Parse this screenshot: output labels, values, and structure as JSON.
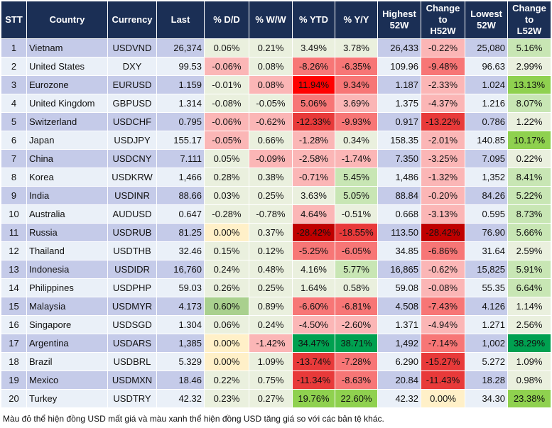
{
  "headers": [
    "STT",
    "Country",
    "Currency",
    "Last",
    "% D/D",
    "% W/W",
    "% YTD",
    "% Y/Y",
    "Highest\n52W",
    "Change\nto\nH52W",
    "Lowest\n52W",
    "Change\nto\nL52W"
  ],
  "color_legend": {
    "def": "#eaf0de",
    "r1": "#fbb6b6",
    "r2": "#f77676",
    "r3": "#e83a3a",
    "r4": "#ff0000",
    "r5": "#c00000",
    "g1": "#c8e6b4",
    "g2": "#8fd14f",
    "g3": "#a9d08e",
    "g4": "#00a050",
    "y": "#fff0c8",
    "header": "#1b2f55",
    "row_odd": "#c5cbe9",
    "row_even": "#eaf0f8"
  },
  "rows": [
    {
      "stt": "1",
      "country": "Vietnam",
      "currency": "USDVND",
      "last": "26,374",
      "dd": "0.06%",
      "ww": "0.21%",
      "ytd": "3.49%",
      "yy": "3.78%",
      "h52": "26,433",
      "chh": "-0.22%",
      "l52": "25,080",
      "chl": "5.16%",
      "colors": [
        "def",
        "def",
        "def",
        "def",
        "r1",
        "g1"
      ]
    },
    {
      "stt": "2",
      "country": "United States",
      "currency": "DXY",
      "last": "99.53",
      "dd": "-0.06%",
      "ww": "0.08%",
      "ytd": "-8.26%",
      "yy": "-6.35%",
      "h52": "109.96",
      "chh": "-9.48%",
      "l52": "96.63",
      "chl": "2.99%",
      "colors": [
        "r1",
        "def",
        "r2",
        "r2",
        "r2",
        "def"
      ]
    },
    {
      "stt": "3",
      "country": "Eurozone",
      "currency": "EURUSD",
      "last": "1.159",
      "dd": "-0.01%",
      "ww": "0.08%",
      "ytd": "11.94%",
      "yy": "9.34%",
      "h52": "1.187",
      "chh": "-2.33%",
      "l52": "1.024",
      "chl": "13.13%",
      "colors": [
        "def",
        "r1",
        "r4",
        "r2",
        "r1",
        "g2"
      ]
    },
    {
      "stt": "4",
      "country": "United Kingdom",
      "currency": "GBPUSD",
      "last": "1.314",
      "dd": "-0.08%",
      "ww": "-0.05%",
      "ytd": "5.06%",
      "yy": "3.69%",
      "h52": "1.375",
      "chh": "-4.37%",
      "l52": "1.216",
      "chl": "8.07%",
      "colors": [
        "def",
        "def",
        "r2",
        "r1",
        "r1",
        "g1"
      ]
    },
    {
      "stt": "5",
      "country": "Switzerland",
      "currency": "USDCHF",
      "last": "0.795",
      "dd": "-0.06%",
      "ww": "-0.62%",
      "ytd": "-12.33%",
      "yy": "-9.93%",
      "h52": "0.917",
      "chh": "-13.22%",
      "l52": "0.786",
      "chl": "1.22%",
      "colors": [
        "r1",
        "r1",
        "r3",
        "r2",
        "r3",
        "def"
      ]
    },
    {
      "stt": "6",
      "country": "Japan",
      "currency": "USDJPY",
      "last": "155.17",
      "dd": "-0.05%",
      "ww": "0.66%",
      "ytd": "-1.28%",
      "yy": "0.34%",
      "h52": "158.35",
      "chh": "-2.01%",
      "l52": "140.85",
      "chl": "10.17%",
      "colors": [
        "r1",
        "def",
        "r1",
        "def",
        "r1",
        "g2"
      ]
    },
    {
      "stt": "7",
      "country": "China",
      "currency": "USDCNY",
      "last": "7.111",
      "dd": "0.05%",
      "ww": "-0.09%",
      "ytd": "-2.58%",
      "yy": "-1.74%",
      "h52": "7.350",
      "chh": "-3.25%",
      "l52": "7.095",
      "chl": "0.22%",
      "colors": [
        "def",
        "r1",
        "r1",
        "r1",
        "r1",
        "def"
      ]
    },
    {
      "stt": "8",
      "country": "Korea",
      "currency": "USDKRW",
      "last": "1,466",
      "dd": "0.28%",
      "ww": "0.38%",
      "ytd": "-0.71%",
      "yy": "5.45%",
      "h52": "1,486",
      "chh": "-1.32%",
      "l52": "1,352",
      "chl": "8.41%",
      "colors": [
        "def",
        "def",
        "r1",
        "g1",
        "r1",
        "g1"
      ]
    },
    {
      "stt": "9",
      "country": "India",
      "currency": "USDINR",
      "last": "88.66",
      "dd": "0.03%",
      "ww": "0.25%",
      "ytd": "3.63%",
      "yy": "5.05%",
      "h52": "88.84",
      "chh": "-0.20%",
      "l52": "84.26",
      "chl": "5.22%",
      "colors": [
        "def",
        "def",
        "def",
        "g1",
        "r1",
        "g1"
      ]
    },
    {
      "stt": "10",
      "country": "Australia",
      "currency": "AUDUSD",
      "last": "0.647",
      "dd": "-0.28%",
      "ww": "-0.78%",
      "ytd": "4.64%",
      "yy": "-0.51%",
      "h52": "0.668",
      "chh": "-3.13%",
      "l52": "0.595",
      "chl": "8.73%",
      "colors": [
        "def",
        "def",
        "r1",
        "def",
        "r1",
        "g1"
      ]
    },
    {
      "stt": "11",
      "country": "Russia",
      "currency": "USDRUB",
      "last": "81.25",
      "dd": "0.00%",
      "ww": "0.37%",
      "ytd": "-28.42%",
      "yy": "-18.55%",
      "h52": "113.50",
      "chh": "-28.42%",
      "l52": "76.90",
      "chl": "5.66%",
      "colors": [
        "y",
        "def",
        "r5",
        "r3",
        "r5",
        "g1"
      ]
    },
    {
      "stt": "12",
      "country": "Thailand",
      "currency": "USDTHB",
      "last": "32.46",
      "dd": "0.15%",
      "ww": "0.12%",
      "ytd": "-5.25%",
      "yy": "-6.05%",
      "h52": "34.85",
      "chh": "-6.86%",
      "l52": "31.64",
      "chl": "2.59%",
      "colors": [
        "def",
        "def",
        "r2",
        "r2",
        "r2",
        "def"
      ]
    },
    {
      "stt": "13",
      "country": "Indonesia",
      "currency": "USDIDR",
      "last": "16,760",
      "dd": "0.24%",
      "ww": "0.48%",
      "ytd": "4.16%",
      "yy": "5.77%",
      "h52": "16,865",
      "chh": "-0.62%",
      "l52": "15,825",
      "chl": "5.91%",
      "colors": [
        "def",
        "def",
        "def",
        "g1",
        "r1",
        "g1"
      ]
    },
    {
      "stt": "14",
      "country": "Philippines",
      "currency": "USDPHP",
      "last": "59.03",
      "dd": "0.26%",
      "ww": "0.25%",
      "ytd": "1.64%",
      "yy": "0.58%",
      "h52": "59.08",
      "chh": "-0.08%",
      "l52": "55.35",
      "chl": "6.64%",
      "colors": [
        "def",
        "def",
        "def",
        "def",
        "r1",
        "g1"
      ]
    },
    {
      "stt": "15",
      "country": "Malaysia",
      "currency": "USDMYR",
      "last": "4.173",
      "dd": "0.60%",
      "ww": "0.89%",
      "ytd": "-6.60%",
      "yy": "-6.81%",
      "h52": "4.508",
      "chh": "-7.43%",
      "l52": "4.126",
      "chl": "1.14%",
      "colors": [
        "g3",
        "def",
        "r2",
        "r2",
        "r2",
        "def"
      ]
    },
    {
      "stt": "16",
      "country": "Singapore",
      "currency": "USDSGD",
      "last": "1.304",
      "dd": "0.06%",
      "ww": "0.24%",
      "ytd": "-4.50%",
      "yy": "-2.60%",
      "h52": "1.371",
      "chh": "-4.94%",
      "l52": "1.271",
      "chl": "2.56%",
      "colors": [
        "def",
        "def",
        "r1",
        "r1",
        "r1",
        "def"
      ]
    },
    {
      "stt": "17",
      "country": "Argentina",
      "currency": "USDARS",
      "last": "1,385",
      "dd": "0.00%",
      "ww": "-1.42%",
      "ytd": "34.47%",
      "yy": "38.71%",
      "h52": "1,492",
      "chh": "-7.14%",
      "l52": "1,002",
      "chl": "38.29%",
      "colors": [
        "y",
        "r1",
        "g4",
        "g4",
        "r2",
        "g4"
      ]
    },
    {
      "stt": "18",
      "country": "Brazil",
      "currency": "USDBRL",
      "last": "5.329",
      "dd": "0.00%",
      "ww": "1.09%",
      "ytd": "-13.74%",
      "yy": "-7.28%",
      "h52": "6.290",
      "chh": "-15.27%",
      "l52": "5.272",
      "chl": "1.09%",
      "colors": [
        "y",
        "def",
        "r3",
        "r2",
        "r3",
        "def"
      ]
    },
    {
      "stt": "19",
      "country": "Mexico",
      "currency": "USDMXN",
      "last": "18.46",
      "dd": "0.22%",
      "ww": "0.75%",
      "ytd": "-11.34%",
      "yy": "-8.63%",
      "h52": "20.84",
      "chh": "-11.43%",
      "l52": "18.28",
      "chl": "0.98%",
      "colors": [
        "def",
        "def",
        "r3",
        "r2",
        "r3",
        "def"
      ]
    },
    {
      "stt": "20",
      "country": "Turkey",
      "currency": "USDTRY",
      "last": "42.32",
      "dd": "0.23%",
      "ww": "0.27%",
      "ytd": "19.76%",
      "yy": "22.60%",
      "h52": "42.32",
      "chh": "0.00%",
      "l52": "34.30",
      "chl": "23.38%",
      "colors": [
        "def",
        "def",
        "g2",
        "g2",
        "y",
        "g2"
      ]
    }
  ],
  "footer": "Màu đỏ thể hiện đồng USD mất giá và màu xanh thể hiện đồng USD tăng giá so với các bản tệ khác."
}
